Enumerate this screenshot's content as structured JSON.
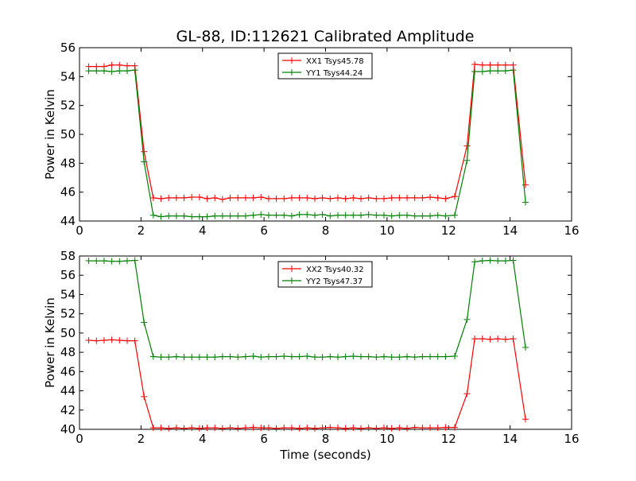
{
  "figure": {
    "title": "GL-88, ID:112621 Calibrated Amplitude"
  },
  "chart_data": [
    {
      "type": "line",
      "title": "GL-88, ID:112621 Calibrated Amplitude",
      "xlabel": "",
      "ylabel": "Power in Kelvin",
      "xlim": [
        0,
        16
      ],
      "ylim": [
        44,
        56
      ],
      "xticks": [
        0,
        2,
        4,
        6,
        8,
        10,
        12,
        14,
        16
      ],
      "yticks": [
        44,
        46,
        48,
        50,
        52,
        54,
        56
      ],
      "grid": false,
      "legend_position": "top-center",
      "x": [
        0.3,
        0.55,
        0.8,
        1.05,
        1.3,
        1.55,
        1.8,
        2.1,
        2.4,
        2.65,
        2.9,
        3.15,
        3.4,
        3.65,
        3.9,
        4.15,
        4.4,
        4.65,
        4.9,
        5.15,
        5.4,
        5.65,
        5.9,
        6.15,
        6.4,
        6.65,
        6.9,
        7.15,
        7.4,
        7.65,
        7.9,
        8.15,
        8.4,
        8.65,
        8.9,
        9.15,
        9.4,
        9.65,
        9.9,
        10.15,
        10.4,
        10.65,
        10.9,
        11.15,
        11.4,
        11.65,
        11.9,
        12.2,
        12.6,
        12.85,
        13.1,
        13.35,
        13.6,
        13.85,
        14.1,
        14.5
      ],
      "series": [
        {
          "name": "XX1 Tsys45.78",
          "color": "#ff0000",
          "values": [
            54.7,
            54.7,
            54.7,
            54.8,
            54.8,
            54.75,
            54.75,
            48.8,
            45.6,
            45.55,
            45.6,
            45.6,
            45.6,
            45.65,
            45.65,
            45.55,
            45.6,
            45.5,
            45.6,
            45.6,
            45.6,
            45.6,
            45.65,
            45.55,
            45.55,
            45.55,
            45.6,
            45.6,
            45.6,
            45.55,
            45.6,
            45.55,
            45.6,
            45.55,
            45.6,
            45.55,
            45.6,
            45.55,
            45.55,
            45.6,
            45.6,
            45.6,
            45.6,
            45.6,
            45.65,
            45.6,
            45.55,
            45.7,
            49.2,
            54.85,
            54.8,
            54.8,
            54.8,
            54.8,
            54.8,
            46.5
          ]
        },
        {
          "name": "YY1 Tsys44.24",
          "color": "#008000",
          "values": [
            54.4,
            54.4,
            54.4,
            54.35,
            54.4,
            54.4,
            54.45,
            48.1,
            44.4,
            44.3,
            44.35,
            44.35,
            44.35,
            44.3,
            44.3,
            44.3,
            44.35,
            44.35,
            44.35,
            44.35,
            44.35,
            44.4,
            44.45,
            44.4,
            44.4,
            44.4,
            44.35,
            44.45,
            44.45,
            44.4,
            44.45,
            44.35,
            44.4,
            44.4,
            44.4,
            44.4,
            44.45,
            44.4,
            44.4,
            44.35,
            44.4,
            44.4,
            44.35,
            44.35,
            44.35,
            44.4,
            44.35,
            44.4,
            48.2,
            54.35,
            54.35,
            54.4,
            54.4,
            54.4,
            54.45,
            45.3
          ]
        }
      ]
    },
    {
      "type": "line",
      "title": "",
      "xlabel": "Time (seconds)",
      "ylabel": "Power in Kelvin",
      "xlim": [
        0,
        16
      ],
      "ylim": [
        40,
        58
      ],
      "xticks": [
        0,
        2,
        4,
        6,
        8,
        10,
        12,
        14,
        16
      ],
      "yticks": [
        40,
        42,
        44,
        46,
        48,
        50,
        52,
        54,
        56,
        58
      ],
      "grid": false,
      "legend_position": "top-center",
      "x": [
        0.3,
        0.55,
        0.8,
        1.05,
        1.3,
        1.55,
        1.8,
        2.1,
        2.4,
        2.65,
        2.9,
        3.15,
        3.4,
        3.65,
        3.9,
        4.15,
        4.4,
        4.65,
        4.9,
        5.15,
        5.4,
        5.65,
        5.9,
        6.15,
        6.4,
        6.65,
        6.9,
        7.15,
        7.4,
        7.65,
        7.9,
        8.15,
        8.4,
        8.65,
        8.9,
        9.15,
        9.4,
        9.65,
        9.9,
        10.15,
        10.4,
        10.65,
        10.9,
        11.15,
        11.4,
        11.65,
        11.9,
        12.2,
        12.6,
        12.85,
        13.1,
        13.35,
        13.6,
        13.85,
        14.1,
        14.5
      ],
      "series": [
        {
          "name": "XX2 Tsys40.32",
          "color": "#ff0000",
          "values": [
            49.25,
            49.2,
            49.25,
            49.3,
            49.25,
            49.2,
            49.2,
            43.4,
            40.15,
            40.15,
            40.1,
            40.15,
            40.1,
            40.15,
            40.1,
            40.15,
            40.15,
            40.1,
            40.15,
            40.1,
            40.15,
            40.2,
            40.15,
            40.15,
            40.1,
            40.15,
            40.15,
            40.1,
            40.15,
            40.1,
            40.15,
            40.2,
            40.15,
            40.1,
            40.15,
            40.1,
            40.15,
            40.1,
            40.15,
            40.1,
            40.15,
            40.1,
            40.2,
            40.15,
            40.15,
            40.15,
            40.2,
            40.2,
            43.7,
            49.4,
            49.4,
            49.35,
            49.4,
            49.35,
            49.4,
            41.05
          ]
        },
        {
          "name": "YY2 Tsys47.37",
          "color": "#008000",
          "values": [
            57.5,
            57.5,
            57.5,
            57.45,
            57.45,
            57.5,
            57.55,
            51.1,
            47.55,
            47.5,
            47.5,
            47.55,
            47.5,
            47.5,
            47.5,
            47.5,
            47.5,
            47.55,
            47.55,
            47.5,
            47.55,
            47.6,
            47.5,
            47.55,
            47.55,
            47.6,
            47.55,
            47.55,
            47.6,
            47.5,
            47.5,
            47.55,
            47.5,
            47.55,
            47.6,
            47.55,
            47.55,
            47.5,
            47.55,
            47.5,
            47.5,
            47.55,
            47.5,
            47.55,
            47.55,
            47.55,
            47.55,
            47.6,
            51.4,
            57.4,
            57.5,
            57.55,
            57.5,
            57.5,
            57.55,
            48.5
          ]
        }
      ]
    }
  ]
}
